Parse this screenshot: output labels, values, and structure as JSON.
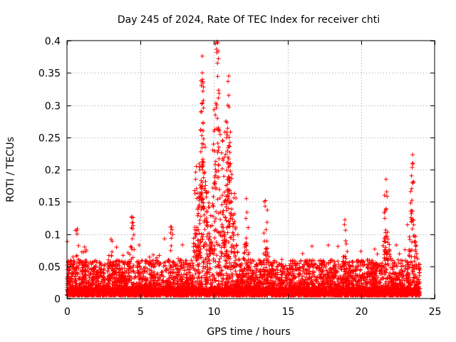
{
  "chart_data": {
    "type": "scatter",
    "title": "Day 245 of 2024, Rate Of TEC Index for receiver chti",
    "xlabel": "GPS time / hours",
    "ylabel": "ROTI / TECUs",
    "xlim": [
      0,
      25
    ],
    "ylim": [
      0,
      0.4
    ],
    "x_ticks": [
      0,
      5,
      10,
      15,
      20,
      25
    ],
    "x_tick_labels": [
      "0",
      "5",
      "10",
      "15",
      "20",
      "25"
    ],
    "y_ticks": [
      0,
      0.05,
      0.1,
      0.15,
      0.2,
      0.25,
      0.3,
      0.35,
      0.4
    ],
    "y_tick_labels": [
      "0",
      "0.05",
      "0.1",
      "0.15",
      "0.2",
      "0.25",
      "0.3",
      "0.35",
      "0.4"
    ],
    "grid": true,
    "marker": "+",
    "marker_color": "#ff0000",
    "series": [
      {
        "name": "ROTI",
        "x_range": [
          0,
          24
        ],
        "typical_range": [
          0.005,
          0.06
        ],
        "notable_points": [
          {
            "x": 0.7,
            "y": 0.108
          },
          {
            "x": 1.2,
            "y": 0.08
          },
          {
            "x": 3.0,
            "y": 0.092
          },
          {
            "x": 4.4,
            "y": 0.127
          },
          {
            "x": 4.5,
            "y": 0.113
          },
          {
            "x": 7.1,
            "y": 0.111
          },
          {
            "x": 8.8,
            "y": 0.205
          },
          {
            "x": 9.0,
            "y": 0.145
          },
          {
            "x": 9.1,
            "y": 0.262
          },
          {
            "x": 9.2,
            "y": 0.303
          },
          {
            "x": 9.2,
            "y": 0.35
          },
          {
            "x": 9.2,
            "y": 0.376
          },
          {
            "x": 9.4,
            "y": 0.235
          },
          {
            "x": 9.6,
            "y": 0.165
          },
          {
            "x": 10.0,
            "y": 0.293
          },
          {
            "x": 10.2,
            "y": 0.398
          },
          {
            "x": 10.3,
            "y": 0.372
          },
          {
            "x": 10.6,
            "y": 0.245
          },
          {
            "x": 10.8,
            "y": 0.275
          },
          {
            "x": 11.0,
            "y": 0.345
          },
          {
            "x": 11.0,
            "y": 0.315
          },
          {
            "x": 11.0,
            "y": 0.237
          },
          {
            "x": 11.4,
            "y": 0.163
          },
          {
            "x": 12.2,
            "y": 0.155
          },
          {
            "x": 13.5,
            "y": 0.152
          },
          {
            "x": 18.9,
            "y": 0.122
          },
          {
            "x": 21.7,
            "y": 0.185
          },
          {
            "x": 21.7,
            "y": 0.138
          },
          {
            "x": 23.5,
            "y": 0.223
          },
          {
            "x": 23.5,
            "y": 0.18
          }
        ]
      }
    ]
  }
}
